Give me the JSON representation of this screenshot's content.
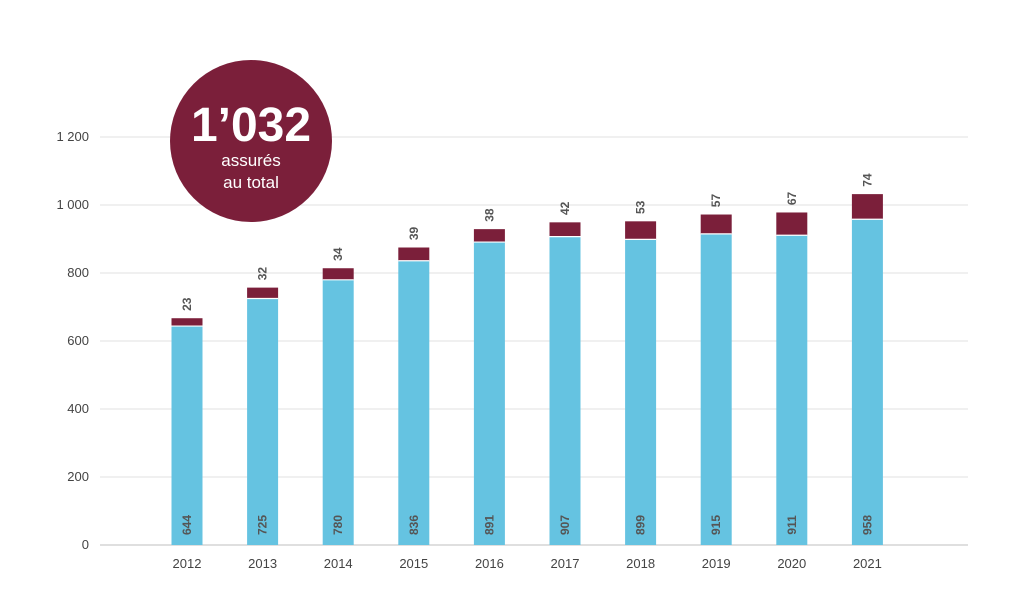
{
  "badge": {
    "number": "1’032",
    "line1": "assurés",
    "line2": "au total",
    "color": "#7b1f3a"
  },
  "chart_data": {
    "type": "bar",
    "stacked": true,
    "categories": [
      "2012",
      "2013",
      "2014",
      "2015",
      "2016",
      "2017",
      "2018",
      "2019",
      "2020",
      "2021"
    ],
    "series": [
      {
        "color": "#65c3e1",
        "values": [
          644,
          725,
          780,
          836,
          891,
          907,
          899,
          915,
          911,
          958
        ]
      },
      {
        "color": "#7b1f3a",
        "values": [
          23,
          32,
          34,
          39,
          38,
          42,
          53,
          57,
          67,
          74
        ]
      }
    ],
    "ylim": [
      0,
      1200
    ],
    "yticks": [
      0,
      200,
      400,
      600,
      800,
      1000,
      1200
    ],
    "ytick_labels": [
      "0",
      "200",
      "400",
      "600",
      "800",
      "1 000",
      "1 200"
    ],
    "grid": true,
    "title": "",
    "xlabel": "",
    "ylabel": ""
  }
}
